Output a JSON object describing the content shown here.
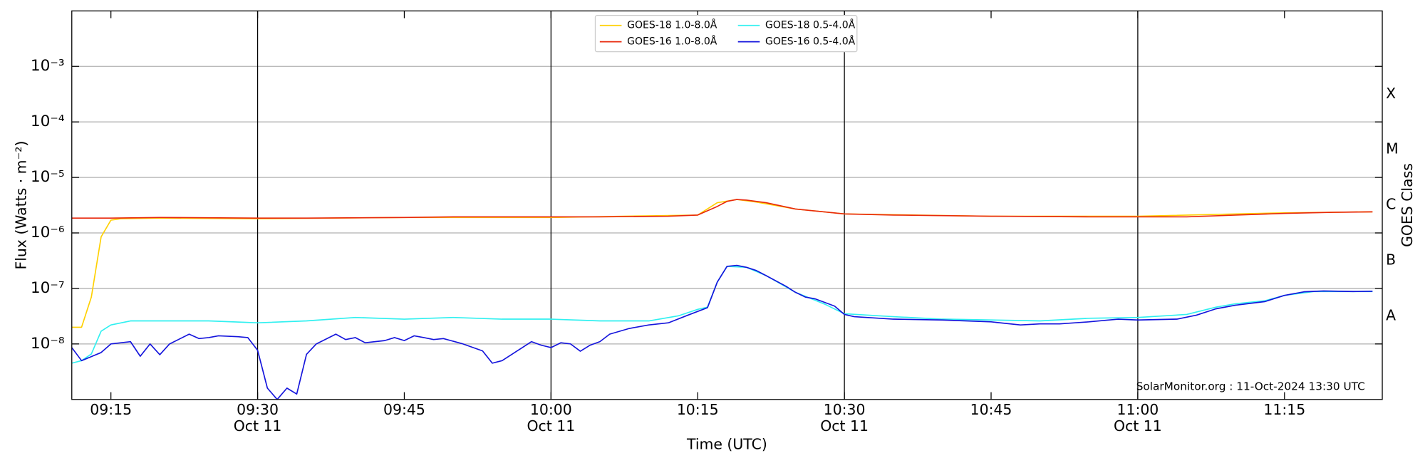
{
  "chart_data": {
    "type": "line",
    "ylabel": "Flux (Watts · m⁻²)",
    "y2label": "GOES Class",
    "xlabel": "Time (UTC)",
    "annotation": "SolarMonitor.org : 11-Oct-2024 13:30 UTC",
    "yscale": "log",
    "ylim": [
      1e-09,
      0.01
    ],
    "yticks": [
      {
        "value": 1e-08,
        "label": "10⁻⁸"
      },
      {
        "value": 1e-07,
        "label": "10⁻⁷"
      },
      {
        "value": 1e-06,
        "label": "10⁻⁶"
      },
      {
        "value": 1e-05,
        "label": "10⁻⁵"
      },
      {
        "value": 0.0001,
        "label": "10⁻⁴"
      },
      {
        "value": 0.001,
        "label": "10⁻³"
      }
    ],
    "y2lim": [
      1e-09,
      0.01
    ],
    "y2ticks": [
      {
        "value": 3.2e-08,
        "label": "A"
      },
      {
        "value": 3.2e-07,
        "label": "B"
      },
      {
        "value": 3.2e-06,
        "label": "C"
      },
      {
        "value": 3.2e-05,
        "label": "M"
      },
      {
        "value": 0.00032,
        "label": "X"
      }
    ],
    "xlim": [
      "09:11",
      "11:25"
    ],
    "xticks": [
      "09:15",
      {
        "value": "09:30",
        "label": [
          "09:30",
          "Oct 11"
        ]
      },
      "09:45",
      {
        "value": "10:00",
        "label": [
          "10:00",
          "Oct 11"
        ]
      },
      "10:15",
      {
        "value": "10:30",
        "label": [
          "10:30",
          "Oct 11"
        ]
      },
      "10:45",
      {
        "value": "11:00",
        "label": [
          "11:00",
          "Oct 11"
        ]
      },
      "11:15"
    ],
    "grid": true,
    "date_gridlines": true,
    "legend": "upper center",
    "series": [
      {
        "name": "GOES-18 1.0-8.0Å",
        "color": "#ffd000",
        "x": [
          "09:11",
          "09:12",
          "09:13",
          "09:14",
          "09:15",
          "09:16",
          "09:20",
          "09:30",
          "09:45",
          "10:00",
          "10:15",
          "10:17",
          "10:19",
          "10:21",
          "10:25",
          "10:30",
          "10:45",
          "11:00",
          "11:15",
          "11:24"
        ],
        "values": [
          2e-08,
          2e-08,
          7e-08,
          8.5e-07,
          1.7e-06,
          1.8e-06,
          1.85e-06,
          1.8e-06,
          1.9e-06,
          1.9e-06,
          2.1e-06,
          3.5e-06,
          4e-06,
          3.6e-06,
          2.7e-06,
          2.2e-06,
          2e-06,
          2e-06,
          2.3e-06,
          2.4e-06
        ]
      },
      {
        "name": "GOES-16 1.0-8.0Å",
        "color": "#e8280c",
        "x": [
          "09:11",
          "09:15",
          "09:20",
          "09:30",
          "09:35",
          "09:45",
          "09:50",
          "10:00",
          "10:05",
          "10:12",
          "10:15",
          "10:17",
          "10:18",
          "10:19",
          "10:20",
          "10:22",
          "10:25",
          "10:30",
          "10:35",
          "10:45",
          "10:55",
          "11:00",
          "11:05",
          "11:10",
          "11:15",
          "11:20",
          "11:24"
        ],
        "values": [
          1.85e-06,
          1.85e-06,
          1.9e-06,
          1.85e-06,
          1.85e-06,
          1.9e-06,
          1.95e-06,
          1.95e-06,
          1.95e-06,
          2e-06,
          2.1e-06,
          3e-06,
          3.7e-06,
          4e-06,
          3.9e-06,
          3.5e-06,
          2.7e-06,
          2.2e-06,
          2.1e-06,
          2e-06,
          1.95e-06,
          1.95e-06,
          1.95e-06,
          2.1e-06,
          2.25e-06,
          2.35e-06,
          2.4e-06
        ]
      },
      {
        "name": "GOES-18 0.5-4.0Å",
        "color": "#30f0f0",
        "x": [
          "09:11",
          "09:12",
          "09:13",
          "09:14",
          "09:15",
          "09:17",
          "09:20",
          "09:25",
          "09:30",
          "09:35",
          "09:40",
          "09:45",
          "09:50",
          "09:55",
          "10:00",
          "10:05",
          "10:10",
          "10:13",
          "10:15",
          "10:16",
          "10:17",
          "10:18",
          "10:20",
          "10:22",
          "10:25",
          "10:28",
          "10:30",
          "10:35",
          "10:40",
          "10:45",
          "10:50",
          "10:55",
          "11:00",
          "11:05",
          "11:08",
          "11:10",
          "11:13",
          "11:15",
          "11:18",
          "11:24"
        ],
        "values": [
          4.5e-09,
          5e-09,
          6.6e-09,
          1.7e-08,
          2.2e-08,
          2.6e-08,
          2.6e-08,
          2.6e-08,
          2.4e-08,
          2.6e-08,
          3e-08,
          2.8e-08,
          3e-08,
          2.8e-08,
          2.8e-08,
          2.6e-08,
          2.6e-08,
          3.2e-08,
          4.2e-08,
          4.6e-08,
          1.3e-07,
          2.5e-07,
          2.4e-07,
          1.7e-07,
          8.5e-08,
          5.2e-08,
          3.5e-08,
          3.1e-08,
          2.8e-08,
          2.7e-08,
          2.6e-08,
          2.9e-08,
          3e-08,
          3.4e-08,
          4.6e-08,
          5.3e-08,
          6e-08,
          7.5e-08,
          8.8e-08,
          8.8e-08
        ]
      },
      {
        "name": "GOES-16 0.5-4.0Å",
        "color": "#1414dc",
        "x": [
          "09:11",
          "09:12",
          "09:14",
          "09:15",
          "09:17",
          "09:18",
          "09:19",
          "09:20",
          "09:21",
          "09:23",
          "09:24",
          "09:25",
          "09:26",
          "09:28",
          "09:29",
          "09:30",
          "09:31",
          "09:32",
          "09:33",
          "09:34",
          "09:35",
          "09:36",
          "09:38",
          "09:39",
          "09:40",
          "09:41",
          "09:43",
          "09:44",
          "09:45",
          "09:46",
          "09:47",
          "09:48",
          "09:49",
          "09:51",
          "09:53",
          "09:54",
          "09:55",
          "09:56",
          "09:58",
          "09:59",
          "10:00",
          "10:01",
          "10:02",
          "10:03",
          "10:04",
          "10:05",
          "10:06",
          "10:08",
          "10:10",
          "10:12",
          "10:14",
          "10:16",
          "10:17",
          "10:18",
          "10:19",
          "10:20",
          "10:21",
          "10:22",
          "10:24",
          "10:25",
          "10:26",
          "10:27",
          "10:29",
          "10:30",
          "10:31",
          "10:35",
          "10:40",
          "10:45",
          "10:48",
          "10:50",
          "10:52",
          "10:55",
          "10:58",
          "11:00",
          "11:04",
          "11:06",
          "11:08",
          "11:10",
          "11:13",
          "11:15",
          "11:17",
          "11:19",
          "11:22",
          "11:24"
        ],
        "values": [
          8.6e-09,
          5e-09,
          7e-09,
          1e-08,
          1.1e-08,
          6e-09,
          1e-08,
          6.4e-09,
          1e-08,
          1.5e-08,
          1.25e-08,
          1.3e-08,
          1.4e-08,
          1.35e-08,
          1.3e-08,
          7.7e-09,
          1.6e-09,
          1e-09,
          1.6e-09,
          1.25e-09,
          6.5e-09,
          1e-08,
          1.5e-08,
          1.2e-08,
          1.3e-08,
          1.05e-08,
          1.15e-08,
          1.3e-08,
          1.15e-08,
          1.4e-08,
          1.3e-08,
          1.2e-08,
          1.25e-08,
          1e-08,
          7.5e-09,
          4.5e-09,
          5e-09,
          6.5e-09,
          1.1e-08,
          9.5e-09,
          8.6e-09,
          1.05e-08,
          1e-08,
          7.4e-09,
          9.5e-09,
          1.1e-08,
          1.5e-08,
          1.9e-08,
          2.2e-08,
          2.4e-08,
          3.3e-08,
          4.5e-08,
          1.3e-07,
          2.5e-07,
          2.6e-07,
          2.4e-07,
          2.1e-07,
          1.7e-07,
          1.1e-07,
          8.5e-08,
          7e-08,
          6.5e-08,
          4.8e-08,
          3.4e-08,
          3.1e-08,
          2.8e-08,
          2.7e-08,
          2.5e-08,
          2.2e-08,
          2.3e-08,
          2.3e-08,
          2.5e-08,
          2.8e-08,
          2.7e-08,
          2.8e-08,
          3.3e-08,
          4.3e-08,
          5e-08,
          5.8e-08,
          7.5e-08,
          8.7e-08,
          9e-08,
          8.8e-08,
          8.9e-08
        ]
      }
    ]
  }
}
